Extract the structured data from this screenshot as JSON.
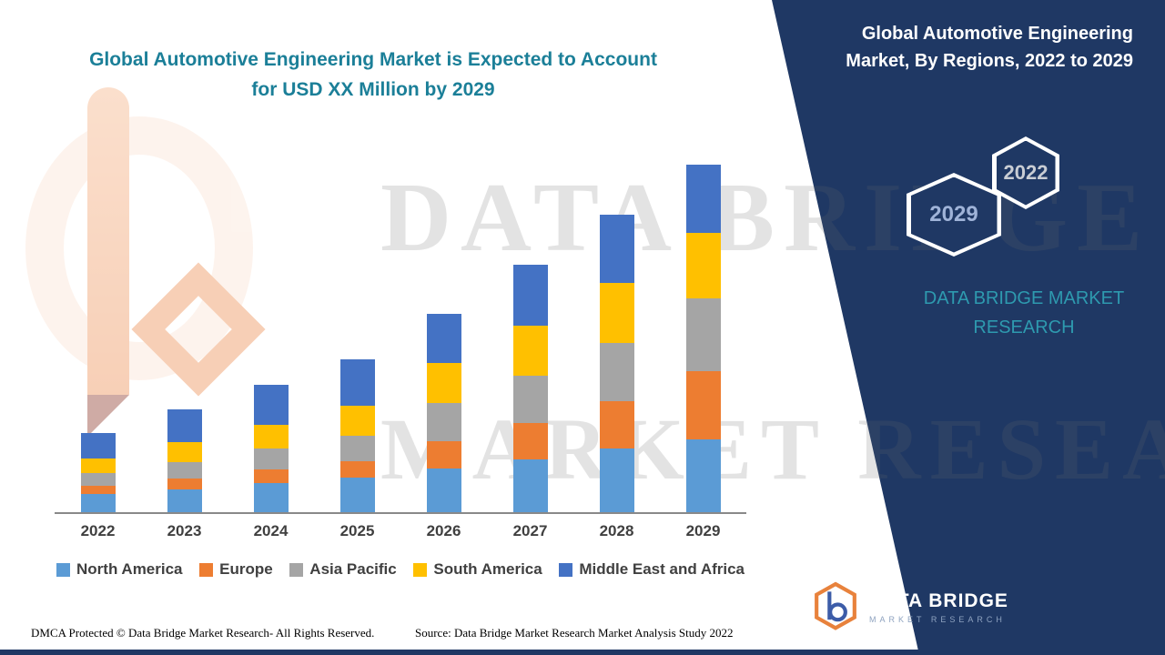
{
  "header": {
    "title_line1": "Global Automotive Engineering Market is Expected to Account",
    "title_line2": "for USD XX Million by 2029"
  },
  "side_panel": {
    "title": "Global Automotive Engineering Market, By Regions, 2022 to 2029",
    "hexagon_back_label": "2029",
    "hexagon_front_label": "2022",
    "brand_line1": "DATA BRIDGE MARKET",
    "brand_line2": "RESEARCH"
  },
  "watermark": {
    "line1": "DATA BRIDGE",
    "line2": "MARKET RESEARCH"
  },
  "logo": {
    "name": "DATA BRIDGE",
    "subtitle": "MARKET RESEARCH"
  },
  "footer": {
    "dmca": "DMCA Protected © Data Bridge Market Research- All Rights Reserved.",
    "source": "Source: Data Bridge Market Research Market Analysis Study 2022"
  },
  "colors": {
    "panel_navy": "#1F3864",
    "title_teal": "#1B7F98",
    "brand_teal": "#2E9AAF",
    "logo_orange": "#E8823C",
    "axis_gray": "#898989"
  },
  "chart_data": {
    "type": "bar",
    "stacked": true,
    "title": "Global Automotive Engineering Market is Expected to Account for USD XX Million by 2029",
    "xlabel": "",
    "ylabel": "",
    "y_axis_visible": false,
    "legend_position": "bottom",
    "values_note": "Actual figures not shown on chart (USD XX Million); values are relative units estimated from bar heights",
    "categories": [
      "2022",
      "2023",
      "2024",
      "2025",
      "2026",
      "2027",
      "2028",
      "2029"
    ],
    "series": [
      {
        "name": "North America",
        "color": "#5B9BD5",
        "values": [
          20,
          25,
          32,
          38,
          48,
          58,
          70,
          80
        ]
      },
      {
        "name": "Europe",
        "color": "#ED7D31",
        "values": [
          9,
          12,
          15,
          18,
          30,
          40,
          52,
          75
        ]
      },
      {
        "name": "Asia Pacific",
        "color": "#A5A5A5",
        "values": [
          14,
          18,
          23,
          28,
          42,
          52,
          64,
          80
        ]
      },
      {
        "name": "South America",
        "color": "#FFC000",
        "values": [
          16,
          22,
          26,
          33,
          44,
          55,
          66,
          72
        ]
      },
      {
        "name": "Middle East and Africa",
        "color": "#4472C4",
        "values": [
          28,
          36,
          44,
          51,
          54,
          67,
          75,
          75
        ]
      }
    ],
    "totals": [
      87,
      113,
      140,
      168,
      218,
      272,
      327,
      382
    ]
  }
}
